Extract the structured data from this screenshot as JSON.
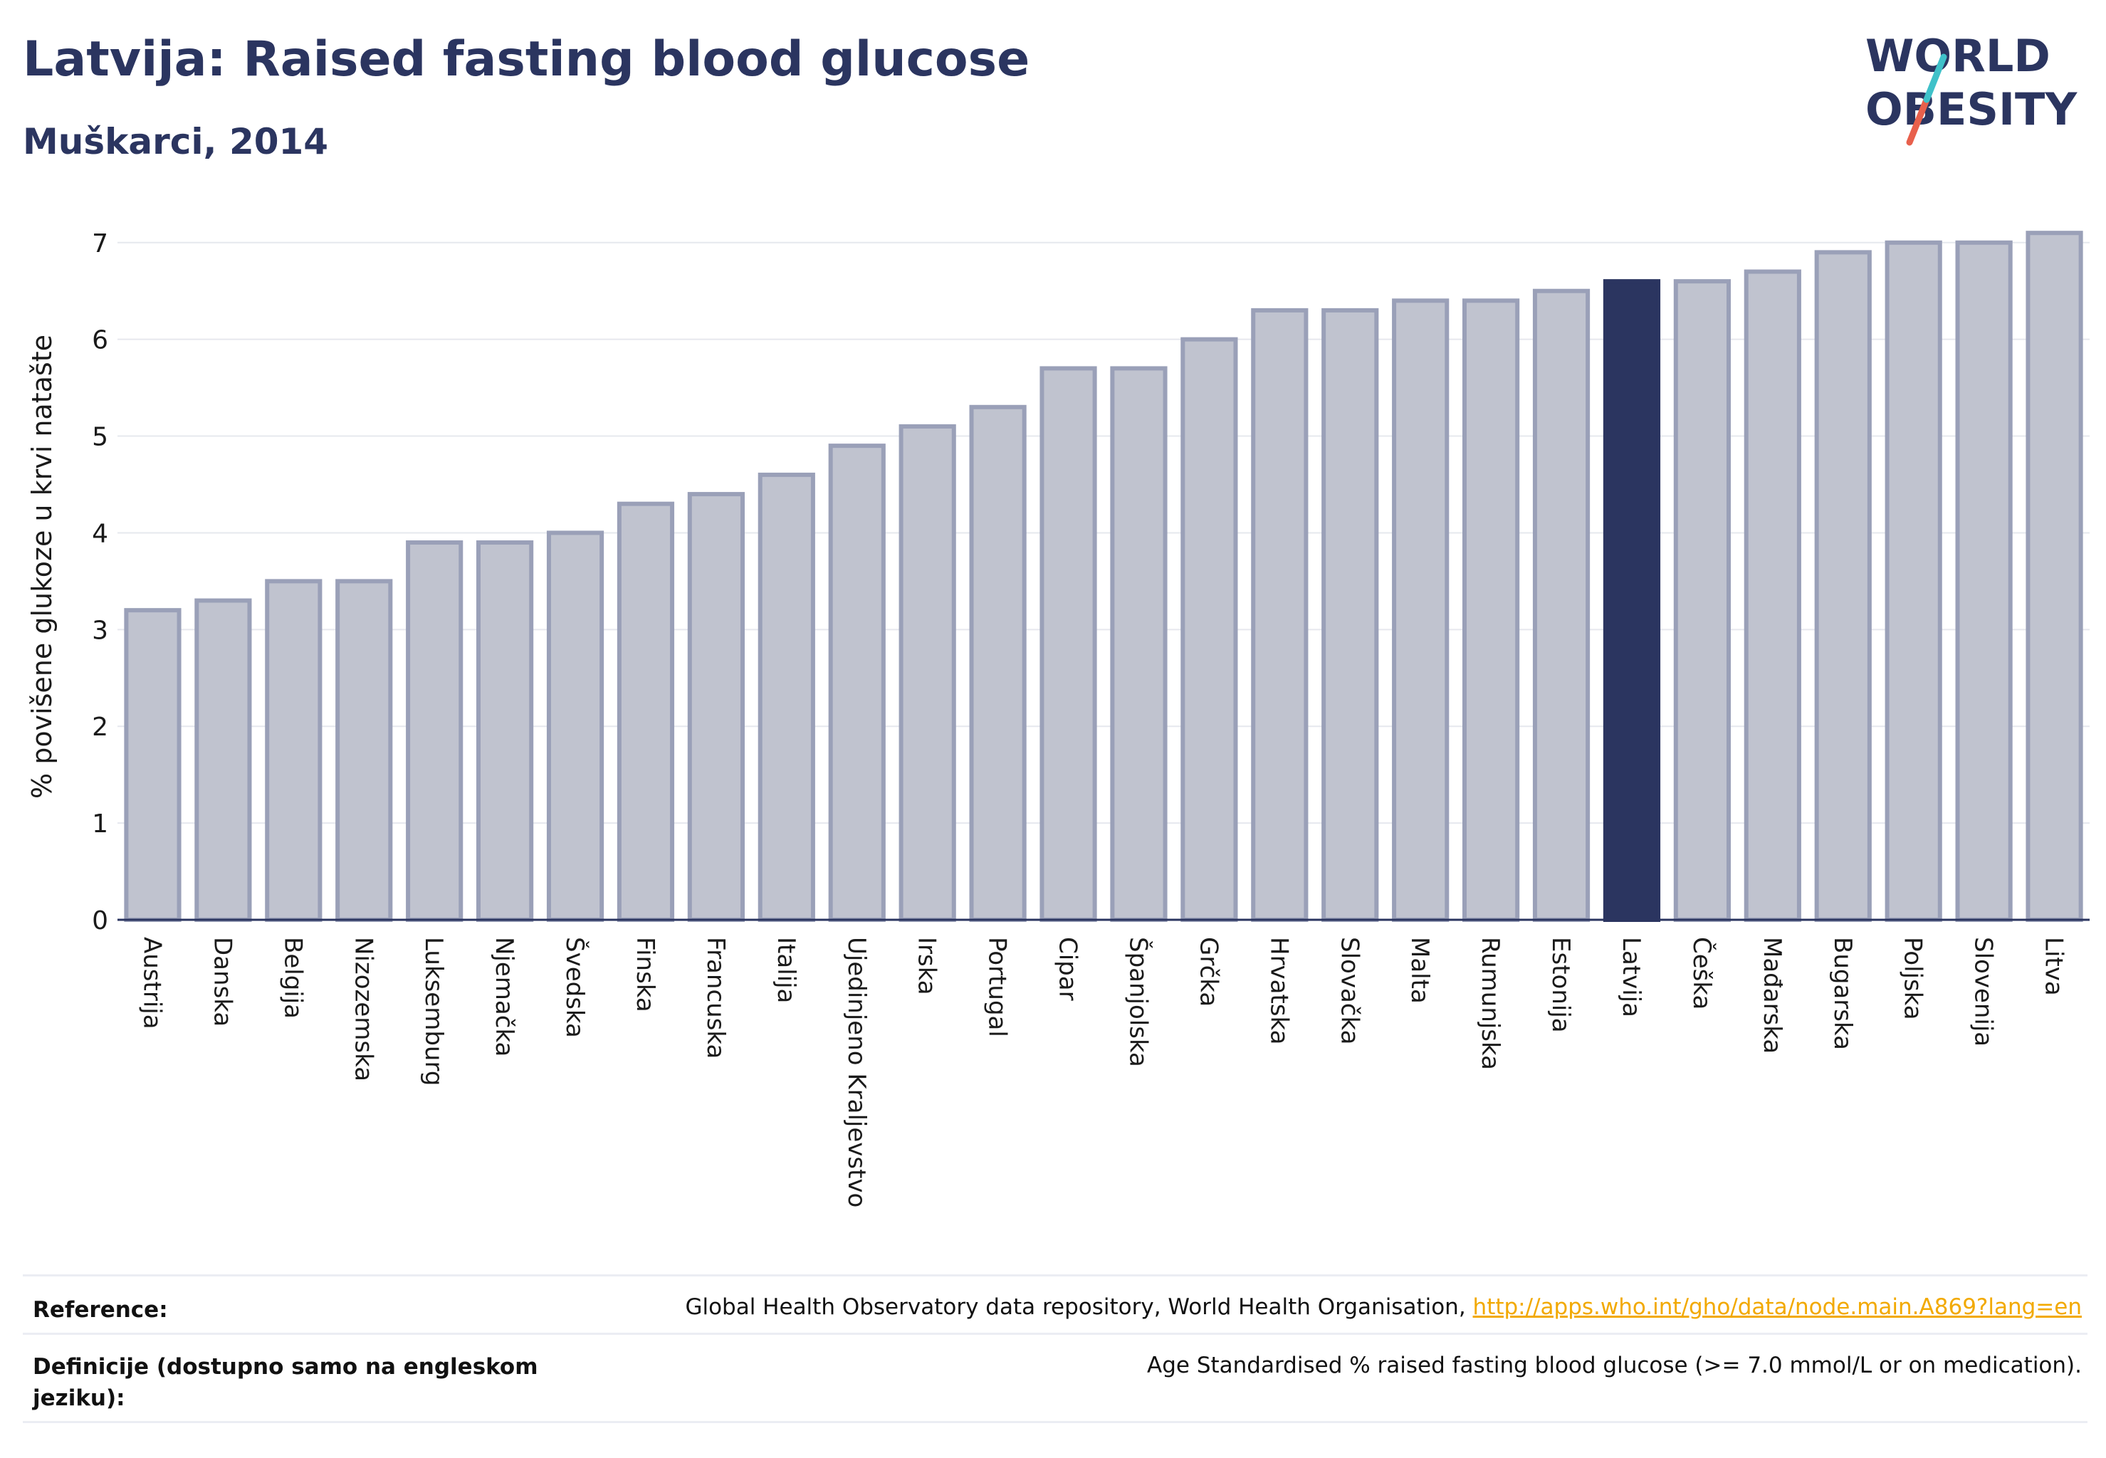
{
  "header": {
    "title": "Latvija: Raised fasting blood glucose",
    "subtitle": "Muškarci, 2014"
  },
  "logo": {
    "line1": "WORLD",
    "line2": "OBESITY",
    "accent_colors": [
      "#3fc1c9",
      "#e8604c"
    ]
  },
  "colors": {
    "bar": "#c0c3cf",
    "bar_border": "#9aa0b8",
    "highlight": "#2b3560",
    "text": "#2b3560"
  },
  "chart_data": {
    "type": "bar",
    "ylabel": "% povišene glukoze u krvi natašte",
    "xlabel": "",
    "ylim": [
      0,
      7.3
    ],
    "yticks": [
      0,
      1,
      2,
      3,
      4,
      5,
      6,
      7
    ],
    "grid": true,
    "highlight": "Latvija",
    "categories": [
      "Austrija",
      "Danska",
      "Belgija",
      "Nizozemska",
      "Luksemburg",
      "Njemačka",
      "Švedska",
      "Finska",
      "Francuska",
      "Italija",
      "Ujedinjeno Kraljevstvo",
      "Irska",
      "Portugal",
      "Cipar",
      "Španjolska",
      "Grčka",
      "Hrvatska",
      "Slovačka",
      "Malta",
      "Rumunjska",
      "Estonija",
      "Latvija",
      "Češka",
      "Mađarska",
      "Bugarska",
      "Poljska",
      "Slovenija",
      "Litva"
    ],
    "values": [
      3.2,
      3.3,
      3.5,
      3.5,
      3.9,
      3.9,
      4.0,
      4.3,
      4.4,
      4.6,
      4.9,
      5.1,
      5.3,
      5.7,
      5.7,
      6.0,
      6.3,
      6.3,
      6.4,
      6.4,
      6.5,
      6.6,
      6.6,
      6.7,
      6.9,
      7.0,
      7.0,
      7.1
    ]
  },
  "footer": {
    "reference_label": "Reference:",
    "reference_text": "Global Health Observatory data repository, World Health Organisation, ",
    "reference_link": "http://apps.who.int/gho/data/node.main.A869?lang=en",
    "definition_label": "Definicije (dostupno samo na engleskom jeziku):",
    "definition_text": "Age Standardised % raised fasting blood glucose (>= 7.0 mmol/L or on medication)."
  }
}
